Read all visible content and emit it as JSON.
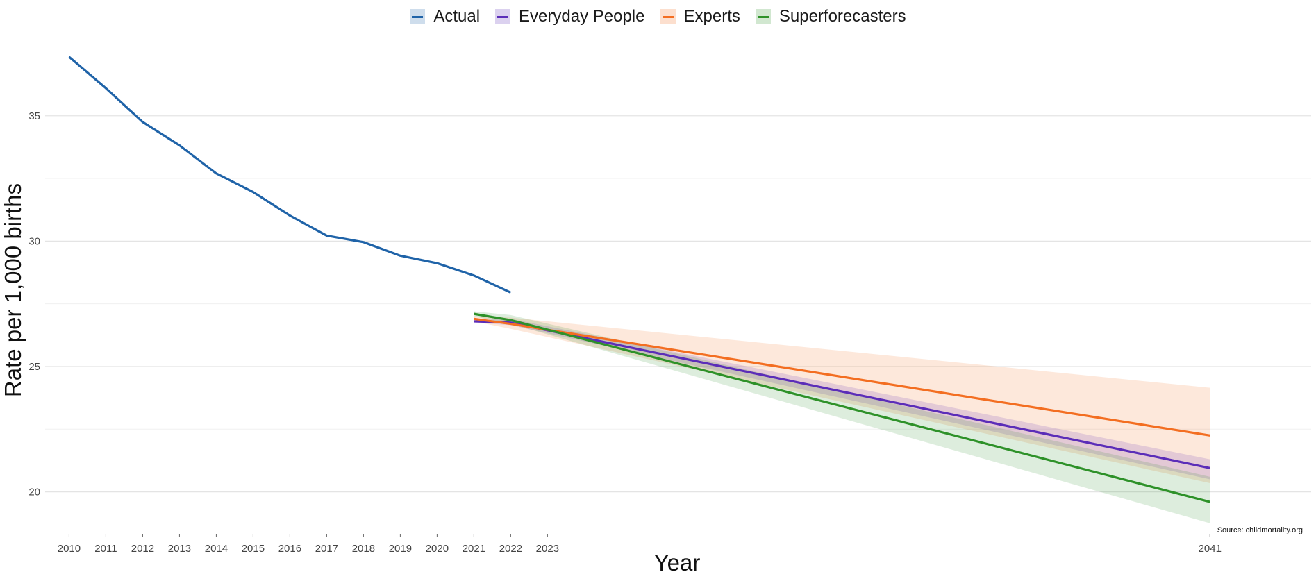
{
  "chart_data": {
    "type": "line",
    "xlabel": "Year",
    "ylabel": "Rate per 1,000 births",
    "source_note": "Source: childmortality.org",
    "legend_position": "top",
    "grid": true,
    "xlim": [
      2009.35,
      2043.75
    ],
    "ylim": [
      18.3,
      37.9
    ],
    "x_ticks": [
      2010,
      2011,
      2012,
      2013,
      2014,
      2015,
      2016,
      2017,
      2018,
      2019,
      2020,
      2021,
      2022,
      2023,
      2041
    ],
    "y_ticks": [
      20,
      25,
      30,
      35
    ],
    "series": [
      {
        "name": "Actual",
        "color": "#1f63a8",
        "x": [
          2010,
          2011,
          2012,
          2013,
          2014,
          2015,
          2016,
          2017,
          2018,
          2019,
          2020,
          2021,
          2022
        ],
        "y": [
          37.35,
          36.1,
          34.75,
          33.82,
          32.7,
          31.96,
          31.02,
          30.22,
          29.96,
          29.42,
          29.12,
          28.63,
          27.95
        ]
      },
      {
        "name": "Everyday People",
        "color": "#5b2db8",
        "x": [
          2021,
          2022,
          2041
        ],
        "y": [
          26.8,
          26.75,
          20.95
        ],
        "band": {
          "x": [
            2021,
            2022,
            2041
          ],
          "lower": [
            26.75,
            26.65,
            20.5
          ],
          "upper": [
            26.85,
            26.9,
            21.3
          ]
        }
      },
      {
        "name": "Experts",
        "color": "#f36e21",
        "x": [
          2021,
          2022,
          2041
        ],
        "y": [
          26.9,
          26.7,
          22.25
        ],
        "band": {
          "x": [
            2021,
            2022,
            2041
          ],
          "lower": [
            26.8,
            26.5,
            20.35
          ],
          "upper": [
            27.0,
            26.95,
            24.15
          ]
        }
      },
      {
        "name": "Superforecasters",
        "color": "#2e9129",
        "x": [
          2021,
          2022,
          2041
        ],
        "y": [
          27.1,
          26.85,
          19.6
        ],
        "band": {
          "x": [
            2021,
            2022,
            2041
          ],
          "lower": [
            27.0,
            26.7,
            18.75
          ],
          "upper": [
            27.2,
            27.05,
            20.6
          ]
        }
      }
    ]
  }
}
